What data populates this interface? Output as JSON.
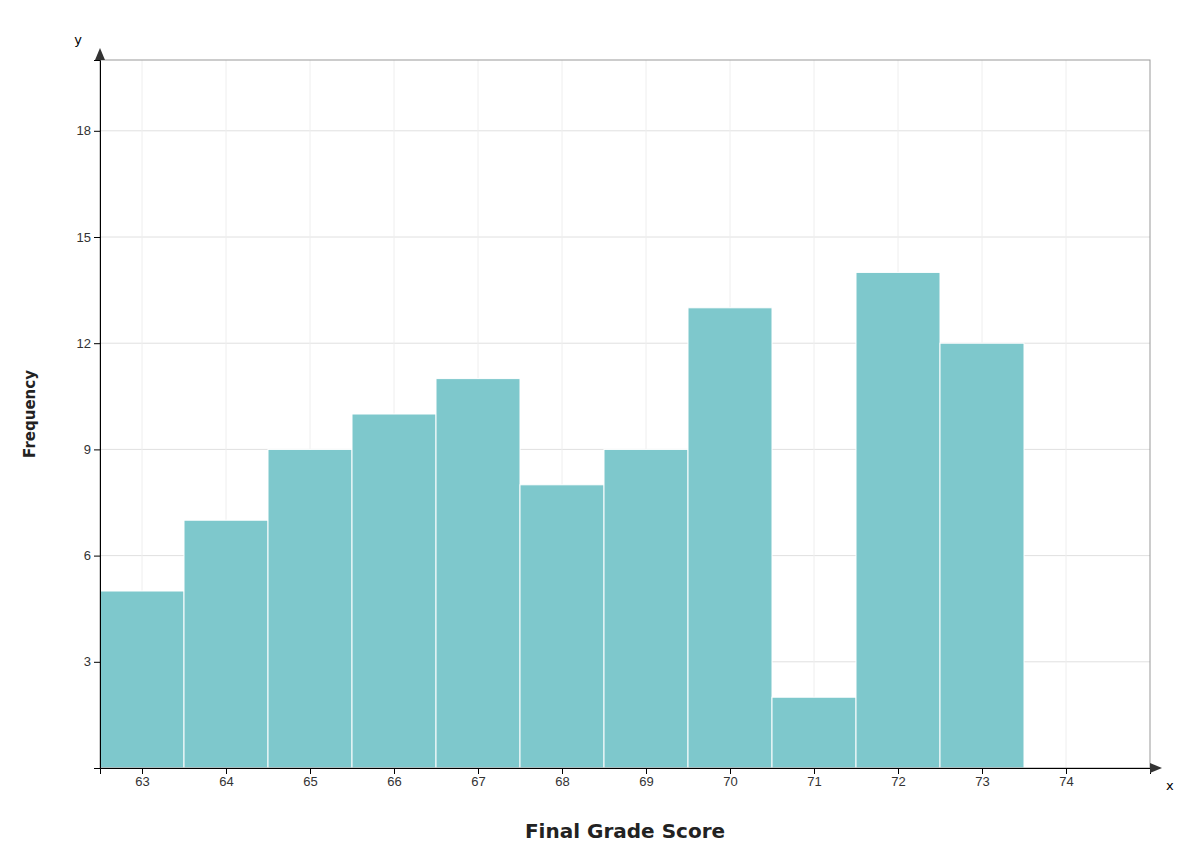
{
  "chart_data": {
    "type": "bar",
    "x": [
      63,
      64,
      65,
      66,
      67,
      68,
      69,
      70,
      71,
      72,
      73
    ],
    "values": [
      5,
      7,
      9,
      10,
      11,
      8,
      9,
      13,
      2,
      14,
      12
    ],
    "color": "#7ec8cc",
    "xlabel": "Final Grade Score",
    "ylabel": "Frequency",
    "annotations": [
      "y",
      "x"
    ],
    "xlim": [
      62.5,
      75.0
    ],
    "xticks": [
      63,
      64,
      65,
      66,
      67,
      68,
      69,
      70,
      71,
      72,
      73,
      74
    ],
    "ylim": [
      0,
      20
    ],
    "yticks": [
      3,
      6,
      9,
      12,
      15,
      18
    ],
    "grid": true
  }
}
